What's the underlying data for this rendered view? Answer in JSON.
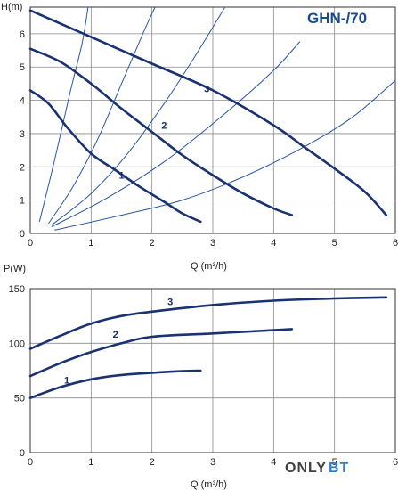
{
  "model_title": "GHN-/70",
  "watermark": {
    "part1": "ONLY",
    "part2": "BT"
  },
  "colors": {
    "curve": "#1a3272",
    "system_line": "#2a56a0",
    "grid": "#8a8a8a",
    "frame": "#333333"
  },
  "chart_data": [
    {
      "type": "line",
      "ylabel": "H(m)",
      "xlabel": "Q (m³/h)",
      "xlim": [
        0,
        6
      ],
      "ylim": [
        0,
        6.8
      ],
      "x_ticks": [
        "0",
        "1",
        "2",
        "3",
        "4",
        "5",
        "6"
      ],
      "y_ticks": [
        "0",
        "1",
        "2",
        "3",
        "4",
        "5",
        "6"
      ],
      "grid": true,
      "series": [
        {
          "name": "1",
          "points": [
            [
              0,
              4.3
            ],
            [
              0.3,
              3.9
            ],
            [
              0.6,
              3.2
            ],
            [
              1.0,
              2.4
            ],
            [
              1.4,
              1.9
            ],
            [
              1.8,
              1.4
            ],
            [
              2.2,
              0.95
            ],
            [
              2.5,
              0.6
            ],
            [
              2.8,
              0.35
            ]
          ]
        },
        {
          "name": "2",
          "points": [
            [
              0,
              5.55
            ],
            [
              0.5,
              5.15
            ],
            [
              1.0,
              4.5
            ],
            [
              1.5,
              3.75
            ],
            [
              2.0,
              3.05
            ],
            [
              2.5,
              2.35
            ],
            [
              3.0,
              1.75
            ],
            [
              3.5,
              1.2
            ],
            [
              4.0,
              0.75
            ],
            [
              4.3,
              0.55
            ]
          ]
        },
        {
          "name": "3",
          "points": [
            [
              0,
              6.7
            ],
            [
              1.0,
              5.9
            ],
            [
              2.0,
              5.1
            ],
            [
              3.0,
              4.3
            ],
            [
              4.0,
              3.25
            ],
            [
              4.5,
              2.6
            ],
            [
              5.0,
              1.95
            ],
            [
              5.5,
              1.25
            ],
            [
              5.85,
              0.55
            ]
          ]
        }
      ],
      "system_curves": [
        {
          "points": [
            [
              0.15,
              0.35
            ],
            [
              0.4,
              2.2
            ],
            [
              0.65,
              4.2
            ],
            [
              0.85,
              5.7
            ],
            [
              0.95,
              6.8
            ]
          ]
        },
        {
          "points": [
            [
              0.3,
              0.3
            ],
            [
              0.7,
              1.4
            ],
            [
              1.1,
              2.8
            ],
            [
              1.5,
              4.5
            ],
            [
              1.85,
              6.0
            ],
            [
              2.05,
              6.8
            ]
          ]
        },
        {
          "points": [
            [
              0.35,
              0.25
            ],
            [
              1.0,
              1.2
            ],
            [
              1.6,
              2.4
            ],
            [
              2.2,
              3.9
            ],
            [
              2.7,
              5.3
            ],
            [
              3.2,
              6.8
            ]
          ]
        },
        {
          "points": [
            [
              0.35,
              0.2
            ],
            [
              1.2,
              1.0
            ],
            [
              2.2,
              2.15
            ],
            [
              3.2,
              3.6
            ],
            [
              4.0,
              4.9
            ],
            [
              4.4,
              5.7
            ],
            [
              4.4,
              5.7
            ]
          ]
        },
        {
          "points": [
            [
              0.4,
              0.1
            ],
            [
              1.5,
              0.55
            ],
            [
              2.5,
              1.0
            ],
            [
              3.5,
              1.7
            ],
            [
              4.5,
              2.6
            ],
            [
              5.3,
              3.5
            ],
            [
              6.0,
              4.6
            ]
          ]
        }
      ],
      "labels": [
        {
          "text": "1",
          "x": 1.5,
          "y": 1.65
        },
        {
          "text": "2",
          "x": 2.2,
          "y": 3.15
        },
        {
          "text": "3",
          "x": 2.9,
          "y": 4.25
        }
      ]
    },
    {
      "type": "line",
      "ylabel": "P(W)",
      "xlabel": "Q (m³/h)",
      "xlim": [
        0,
        6
      ],
      "ylim": [
        0,
        150
      ],
      "x_ticks": [
        "0",
        "1",
        "2",
        "3",
        "4",
        "5",
        "6"
      ],
      "y_ticks": [
        "0",
        "50",
        "100",
        "150"
      ],
      "grid": true,
      "series": [
        {
          "name": "1",
          "points": [
            [
              0,
              50
            ],
            [
              0.5,
              60
            ],
            [
              1.0,
              67
            ],
            [
              1.5,
              71
            ],
            [
              2.0,
              73
            ],
            [
              2.5,
              74.5
            ],
            [
              2.8,
              75
            ]
          ]
        },
        {
          "name": "2",
          "points": [
            [
              0,
              70
            ],
            [
              0.5,
              82
            ],
            [
              1.0,
              92
            ],
            [
              1.5,
              100
            ],
            [
              2.0,
              106
            ],
            [
              3.0,
              109
            ],
            [
              4.0,
              112
            ],
            [
              4.3,
              113
            ]
          ]
        },
        {
          "name": "3",
          "points": [
            [
              0,
              95
            ],
            [
              0.5,
              107
            ],
            [
              1.0,
              118
            ],
            [
              1.5,
              125
            ],
            [
              2.0,
              129
            ],
            [
              3.0,
              135
            ],
            [
              4.0,
              139
            ],
            [
              5.0,
              141
            ],
            [
              5.85,
              142
            ]
          ]
        }
      ],
      "labels": [
        {
          "text": "1",
          "x": 0.6,
          "y": 63
        },
        {
          "text": "2",
          "x": 1.4,
          "y": 105
        },
        {
          "text": "3",
          "x": 2.3,
          "y": 135
        }
      ]
    }
  ]
}
